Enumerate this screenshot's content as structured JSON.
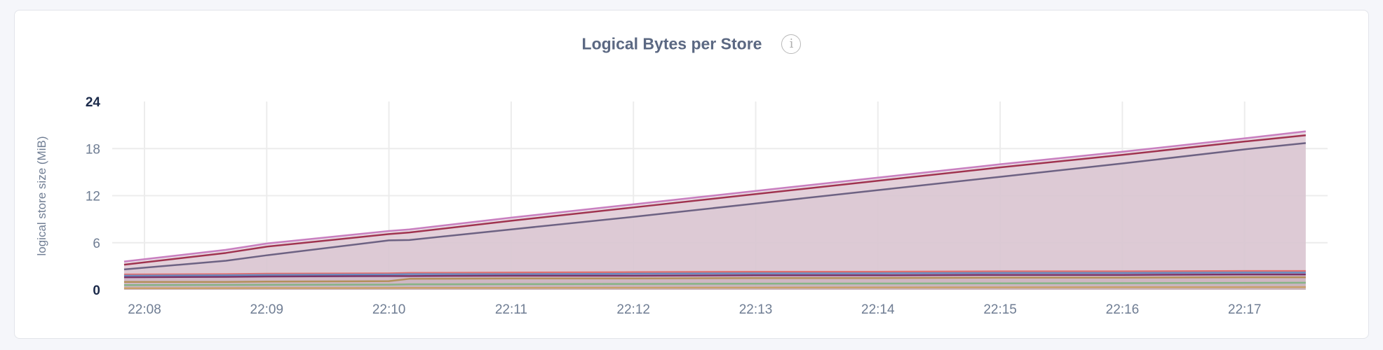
{
  "chart_data": {
    "type": "area",
    "title": "Logical Bytes per Store",
    "info_icon": "info-icon",
    "ylabel": "logical store size (MiB)",
    "xlabel": "",
    "ylim": [
      0,
      24
    ],
    "yticks": [
      "0",
      "6",
      "12",
      "18",
      "24"
    ],
    "yticks_values": [
      0,
      6,
      12,
      18,
      24
    ],
    "xticks": [
      "22:08",
      "22:09",
      "22:10",
      "22:11",
      "22:12",
      "22:13",
      "22:14",
      "22:15",
      "22:16",
      "22:17"
    ],
    "grid": true,
    "legend": "none",
    "fill_color": "#e4d5df",
    "x": [
      "22:07:50",
      "22:08:40",
      "22:09:00",
      "22:10:00",
      "22:10:10",
      "22:11:00",
      "22:12:00",
      "22:13:00",
      "22:14:00",
      "22:15:00",
      "22:16:00",
      "22:17:00",
      "22:17:30"
    ],
    "series": [
      {
        "color": "#c97fc0",
        "values": [
          3.6,
          5.1,
          5.9,
          7.5,
          7.7,
          9.2,
          10.9,
          12.6,
          14.3,
          16.0,
          17.6,
          19.3,
          20.2
        ]
      },
      {
        "color": "#a0334f",
        "values": [
          3.2,
          4.7,
          5.5,
          7.1,
          7.3,
          8.8,
          10.5,
          12.2,
          13.9,
          15.6,
          17.2,
          18.9,
          19.7
        ]
      },
      {
        "color": "#6d6283",
        "values": [
          2.6,
          3.7,
          4.4,
          6.3,
          6.35,
          7.7,
          9.3,
          11.0,
          12.7,
          14.4,
          16.1,
          17.9,
          18.7
        ]
      },
      {
        "color": "#e07070",
        "values": [
          1.95,
          2.0,
          2.05,
          2.1,
          2.15,
          2.2,
          2.25,
          2.3,
          2.3,
          2.35,
          2.35,
          2.4,
          2.4
        ]
      },
      {
        "color": "#6a8cc0",
        "values": [
          1.8,
          1.85,
          1.9,
          1.95,
          2.0,
          2.0,
          2.05,
          2.1,
          2.1,
          2.15,
          2.15,
          2.2,
          2.2
        ]
      },
      {
        "color": "#7b3468",
        "values": [
          1.6,
          1.65,
          1.7,
          1.75,
          1.75,
          1.8,
          1.8,
          1.85,
          1.85,
          1.9,
          1.9,
          1.95,
          1.95
        ]
      },
      {
        "color": "#b3905a",
        "values": [
          1.0,
          1.0,
          1.05,
          1.1,
          1.4,
          1.45,
          1.45,
          1.5,
          1.5,
          1.55,
          1.55,
          1.6,
          1.6
        ]
      },
      {
        "color": "#86b386",
        "values": [
          0.6,
          0.62,
          0.64,
          0.66,
          0.7,
          0.72,
          0.75,
          0.78,
          0.8,
          0.83,
          0.85,
          0.88,
          0.9
        ]
      },
      {
        "color": "#c9a06a",
        "values": [
          0.2,
          0.21,
          0.22,
          0.23,
          0.24,
          0.25,
          0.27,
          0.28,
          0.3,
          0.31,
          0.33,
          0.34,
          0.35
        ]
      }
    ]
  }
}
